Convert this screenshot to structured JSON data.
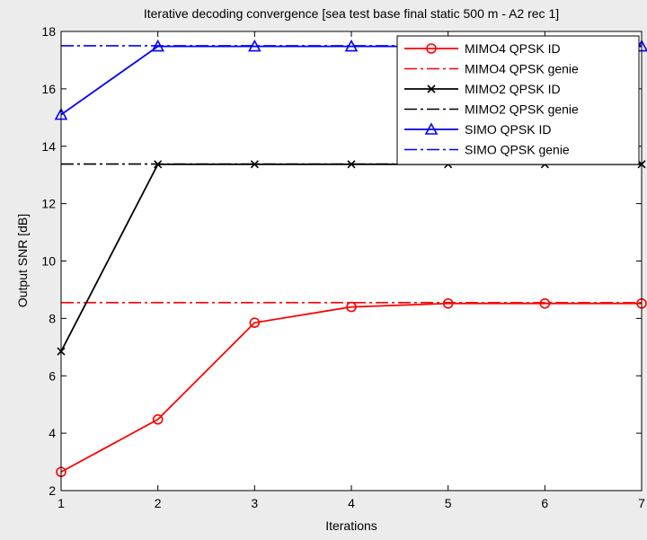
{
  "chart_data": {
    "type": "line",
    "title": "Iterative decoding convergence [sea test base final static 500 m - A2 rec 1]",
    "xlabel": "Iterations",
    "ylabel": "Output SNR [dB]",
    "xlim": [
      1,
      7
    ],
    "ylim": [
      2,
      18
    ],
    "xticks": [
      1,
      2,
      3,
      4,
      5,
      6,
      7
    ],
    "yticks": [
      2,
      4,
      6,
      8,
      10,
      12,
      14,
      16,
      18
    ],
    "grid": false,
    "legend_position": "top-right",
    "x": [
      1,
      2,
      3,
      4,
      5,
      6,
      7
    ],
    "series": [
      {
        "name": "MIMO4 QPSK ID",
        "values": [
          2.65,
          4.48,
          7.85,
          8.4,
          8.52,
          8.52,
          8.52
        ],
        "color": "#ff0000",
        "line": "solid",
        "marker": "circle"
      },
      {
        "name": "MIMO4 QPSK genie",
        "values": [
          8.55,
          8.55,
          8.55,
          8.55,
          8.55,
          8.55,
          8.55
        ],
        "color": "#ff0000",
        "line": "dashdot",
        "marker": "none"
      },
      {
        "name": "MIMO2 QPSK ID",
        "values": [
          6.85,
          13.37,
          13.37,
          13.37,
          13.37,
          13.37,
          13.37
        ],
        "color": "#000000",
        "line": "solid",
        "marker": "x"
      },
      {
        "name": "MIMO2 QPSK genie",
        "values": [
          13.38,
          13.38,
          13.38,
          13.38,
          13.38,
          13.38,
          13.38
        ],
        "color": "#000000",
        "line": "dashdot",
        "marker": "none"
      },
      {
        "name": "SIMO QPSK ID",
        "values": [
          15.1,
          17.48,
          17.48,
          17.48,
          17.48,
          17.48,
          17.48
        ],
        "color": "#0000ff",
        "line": "solid",
        "marker": "triangle"
      },
      {
        "name": "SIMO QPSK genie",
        "values": [
          17.5,
          17.5,
          17.5,
          17.5,
          17.5,
          17.5,
          17.5
        ],
        "color": "#0000ff",
        "line": "dashdot",
        "marker": "none"
      }
    ]
  }
}
